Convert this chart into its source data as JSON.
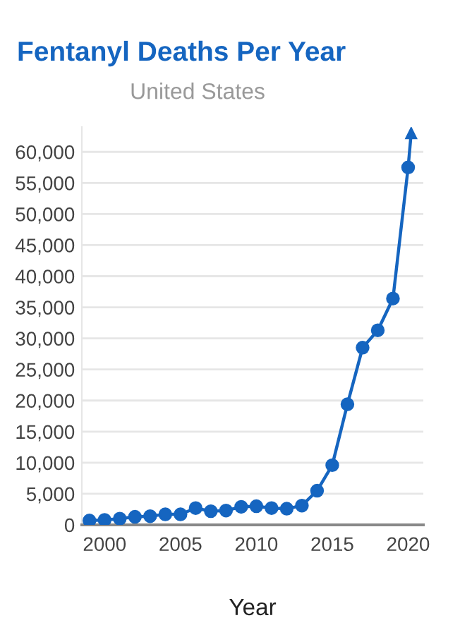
{
  "chart_data": {
    "type": "line",
    "title": "Fentanyl Deaths Per Year",
    "subtitle": "United States",
    "xlabel": "Year",
    "series": [
      {
        "color": "#1565c0",
        "marker": "circle",
        "x": [
          1999,
          2000,
          2001,
          2002,
          2003,
          2004,
          2005,
          2006,
          2007,
          2008,
          2009,
          2010,
          2011,
          2012,
          2013,
          2014,
          2015,
          2016,
          2017,
          2018,
          2019,
          2020
        ],
        "values": [
          700,
          800,
          1000,
          1300,
          1400,
          1700,
          1700,
          2700,
          2200,
          2300,
          2900,
          3000,
          2700,
          2600,
          3100,
          5500,
          9600,
          19400,
          28500,
          31300,
          36400,
          57500
        ]
      },
      {
        "color": "#1565c0",
        "marker": "triangle",
        "x": [
          2020,
          2020.2
        ],
        "values": [
          57500,
          63000
        ]
      }
    ],
    "xlim": [
      1998.5,
      2021
    ],
    "xticks": [
      2000,
      2005,
      2010,
      2015,
      2020
    ],
    "ylim": [
      0,
      64000
    ],
    "yticks": [
      {
        "value": 0,
        "label": "0"
      },
      {
        "value": 5000,
        "label": "5,000"
      },
      {
        "value": 10000,
        "label": "10,000"
      },
      {
        "value": 15000,
        "label": "15,000"
      },
      {
        "value": 20000,
        "label": "20,000"
      },
      {
        "value": 25000,
        "label": "25,000"
      },
      {
        "value": 30000,
        "label": "30,000"
      },
      {
        "value": 35000,
        "label": "35,000"
      },
      {
        "value": 40000,
        "label": "40,000"
      },
      {
        "value": 45000,
        "label": "45,000"
      },
      {
        "value": 50000,
        "label": "50,000"
      },
      {
        "value": 55000,
        "label": "55,000"
      },
      {
        "value": 60000,
        "label": "60,000"
      }
    ],
    "grid": "y"
  }
}
